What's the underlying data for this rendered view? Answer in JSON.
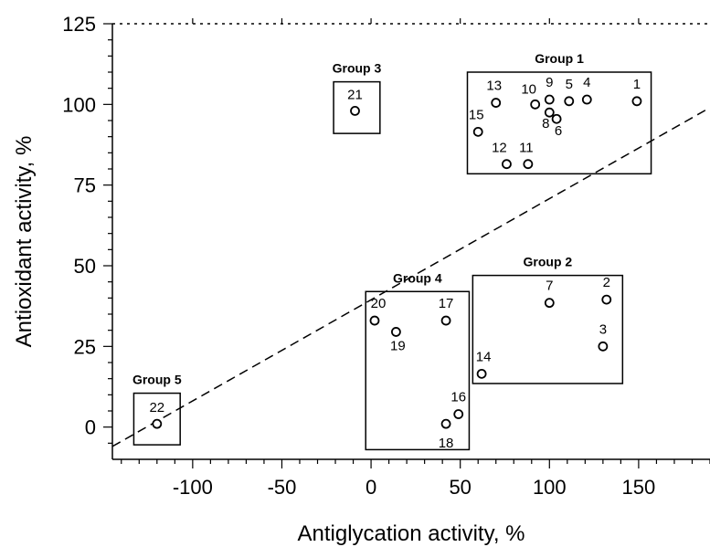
{
  "chart_data": {
    "type": "scatter",
    "xlabel": "Antiglycation activity, %",
    "ylabel": "Antioxidant activity, %",
    "xlim": [
      -145,
      190
    ],
    "ylim": [
      -10,
      125
    ],
    "xticks": [
      -100,
      -50,
      0,
      50,
      100,
      150
    ],
    "yticks": [
      0,
      25,
      50,
      75,
      100,
      125
    ],
    "grid": false,
    "points": [
      {
        "label": "1",
        "x": 149,
        "y": 101
      },
      {
        "label": "2",
        "x": 132,
        "y": 39.5
      },
      {
        "label": "3",
        "x": 130,
        "y": 25
      },
      {
        "label": "4",
        "x": 121,
        "y": 101.5
      },
      {
        "label": "5",
        "x": 111,
        "y": 101
      },
      {
        "label": "6",
        "x": 104,
        "y": 95.5
      },
      {
        "label": "7",
        "x": 100,
        "y": 38.5
      },
      {
        "label": "8",
        "x": 100,
        "y": 97.5
      },
      {
        "label": "9",
        "x": 100,
        "y": 101.5
      },
      {
        "label": "10",
        "x": 92,
        "y": 100
      },
      {
        "label": "11",
        "x": 88,
        "y": 81.5
      },
      {
        "label": "12",
        "x": 76,
        "y": 81.5
      },
      {
        "label": "13",
        "x": 70,
        "y": 100.5
      },
      {
        "label": "14",
        "x": 62,
        "y": 16.5
      },
      {
        "label": "15",
        "x": 60,
        "y": 91.5
      },
      {
        "label": "16",
        "x": 49,
        "y": 4
      },
      {
        "label": "17",
        "x": 42,
        "y": 33
      },
      {
        "label": "18",
        "x": 42,
        "y": 1
      },
      {
        "label": "19",
        "x": 14,
        "y": 29.5
      },
      {
        "label": "20",
        "x": 2,
        "y": 33
      },
      {
        "label": "21",
        "x": -9,
        "y": 98
      },
      {
        "label": "22",
        "x": -120,
        "y": 1
      }
    ],
    "groups": [
      {
        "name": "Group 1",
        "x0": 54,
        "x1": 157,
        "y0": 78.5,
        "y1": 110
      },
      {
        "name": "Group 2",
        "x0": 57,
        "x1": 141,
        "y0": 13.5,
        "y1": 47
      },
      {
        "name": "Group 3",
        "x0": -21,
        "x1": 5,
        "y0": 91,
        "y1": 107
      },
      {
        "name": "Group 4",
        "x0": -3,
        "x1": 55,
        "y0": -7,
        "y1": 42
      },
      {
        "name": "Group 5",
        "x0": -133,
        "x1": -107,
        "y0": -5.5,
        "y1": 10.5
      }
    ],
    "trendline": {
      "style": "dashed",
      "x0": -145,
      "y0": -6,
      "x1": 190,
      "y1": 99
    }
  }
}
